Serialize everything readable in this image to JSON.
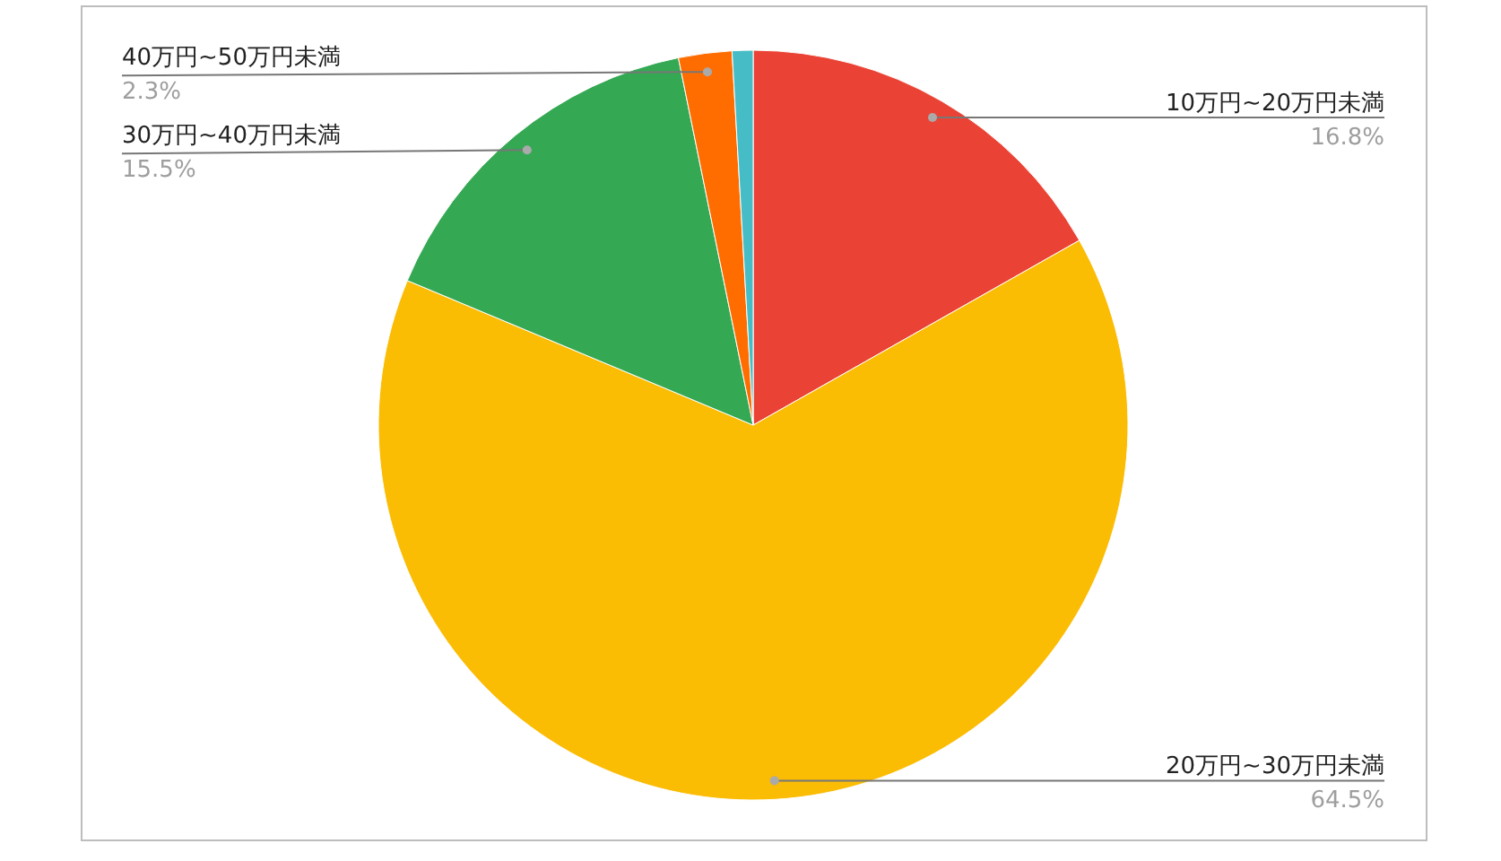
{
  "chart_data": {
    "type": "pie",
    "categories": [
      "10万円~20万円未満",
      "20万円~30万円未満",
      "30万円~40万円未満",
      "40万円~50万円未満",
      null
    ],
    "values": [
      16.8,
      64.5,
      15.5,
      2.3,
      0.9
    ],
    "value_labels": [
      "16.8%",
      "64.5%",
      "15.5%",
      "2.3%",
      null
    ],
    "colors": [
      "#ea4335",
      "#fbbc04",
      "#34a853",
      "#ff6d01",
      "#46bdc6"
    ],
    "legend": false
  }
}
